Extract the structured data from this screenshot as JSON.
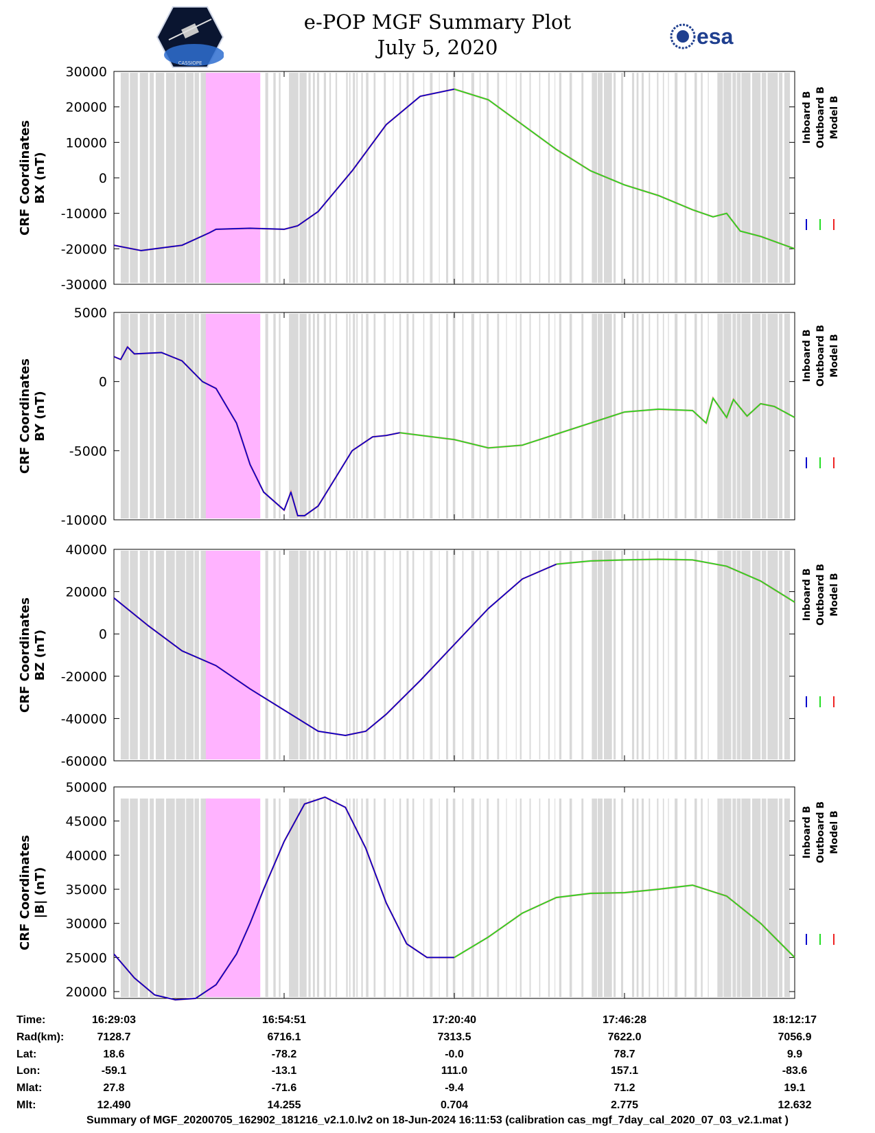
{
  "title": {
    "line1": "e-POP MGF Summary Plot",
    "line2": "July 5, 2020"
  },
  "logos": {
    "left": "cassiope-mission-logo",
    "left_text": "CASSIOPE",
    "right": "esa"
  },
  "legend": [
    {
      "label": "Inboard B",
      "color": "#0000cc"
    },
    {
      "label": "Outboard B",
      "color": "#22dd22"
    },
    {
      "label": "Model B",
      "color": "#ee2222"
    }
  ],
  "colors": {
    "gap_shading": "#d9d9d9",
    "highlight": "#ffb3ff"
  },
  "chart_data": [
    {
      "type": "line",
      "ylabel_line1": "CRF Coordinates",
      "ylabel_line2": "BX (nT)",
      "ylim": [
        -30000,
        30000
      ],
      "yticks": [
        30000,
        20000,
        10000,
        0,
        -10000,
        -20000,
        -30000
      ],
      "yticklabels": [
        "30000",
        "20000",
        "10000",
        "0",
        "-10000",
        "-20000",
        "-30000"
      ],
      "series": [
        {
          "name": "Inboard B",
          "x": [
            0,
            0.04,
            0.1,
            0.14,
            0.15,
            0.2,
            0.25,
            0.27,
            0.3,
            0.35,
            0.4,
            0.45,
            0.5
          ],
          "y": [
            -19000,
            -20500,
            -19000,
            -15500,
            -14500,
            -14200,
            -14500,
            -13500,
            -9500,
            2000,
            15000,
            23000,
            25000
          ]
        },
        {
          "name": "Outboard B",
          "x": [
            0.5,
            0.55,
            0.6,
            0.65,
            0.7,
            0.75,
            0.8,
            0.85,
            0.88,
            0.9,
            0.92,
            0.95,
            1.0
          ],
          "y": [
            25000,
            22000,
            15000,
            8000,
            2000,
            -2000,
            -5000,
            -9000,
            -11000,
            -10000,
            -15000,
            -16500,
            -20000
          ]
        }
      ]
    },
    {
      "type": "line",
      "ylabel_line1": "CRF Coordinates",
      "ylabel_line2": "BY (nT)",
      "ylim": [
        -10000,
        5000
      ],
      "yticks": [
        5000,
        0,
        -5000,
        -10000
      ],
      "yticklabels": [
        "5000",
        "0",
        "-5000",
        "-10000"
      ],
      "series": [
        {
          "name": "Inboard B",
          "x": [
            0,
            0.01,
            0.02,
            0.03,
            0.07,
            0.1,
            0.13,
            0.15,
            0.18,
            0.2,
            0.22,
            0.25,
            0.26,
            0.27,
            0.28,
            0.3,
            0.35,
            0.38,
            0.4,
            0.42
          ],
          "y": [
            1800,
            1600,
            2500,
            2000,
            2100,
            1500,
            0,
            -500,
            -3000,
            -6000,
            -8000,
            -9300,
            -8000,
            -9700,
            -9700,
            -9000,
            -5000,
            -4000,
            -3900,
            -3700
          ]
        },
        {
          "name": "Outboard B",
          "x": [
            0.42,
            0.5,
            0.55,
            0.6,
            0.65,
            0.7,
            0.75,
            0.8,
            0.85,
            0.87,
            0.88,
            0.9,
            0.91,
            0.93,
            0.95,
            0.97,
            1.0
          ],
          "y": [
            -3700,
            -4200,
            -4800,
            -4600,
            -3800,
            -3000,
            -2200,
            -2000,
            -2100,
            -3000,
            -1200,
            -2600,
            -1300,
            -2500,
            -1600,
            -1800,
            -2600
          ]
        }
      ]
    },
    {
      "type": "line",
      "ylabel_line1": "CRF Coordinates",
      "ylabel_line2": "BZ (nT)",
      "ylim": [
        -60000,
        40000
      ],
      "yticks": [
        40000,
        20000,
        0,
        -20000,
        -40000,
        -60000
      ],
      "yticklabels": [
        "40000",
        "20000",
        "0",
        "-20000",
        "-40000",
        "-60000"
      ],
      "series": [
        {
          "name": "Inboard B",
          "x": [
            0,
            0.05,
            0.1,
            0.15,
            0.2,
            0.27,
            0.3,
            0.34,
            0.37,
            0.4,
            0.45,
            0.5,
            0.55,
            0.6,
            0.65
          ],
          "y": [
            17000,
            4000,
            -8000,
            -15000,
            -26000,
            -40000,
            -46000,
            -48000,
            -46000,
            -38000,
            -22000,
            -5000,
            12000,
            26000,
            33000
          ]
        },
        {
          "name": "Outboard B",
          "x": [
            0.65,
            0.7,
            0.75,
            0.8,
            0.85,
            0.9,
            0.95,
            1.0
          ],
          "y": [
            33000,
            34500,
            35000,
            35300,
            35000,
            32000,
            25000,
            15000
          ]
        }
      ]
    },
    {
      "type": "line",
      "ylabel_line1": "CRF Coordinates",
      "ylabel_line2": "|B| (nT)",
      "ylim": [
        19000,
        50000
      ],
      "yticks": [
        50000,
        45000,
        40000,
        35000,
        30000,
        25000,
        20000
      ],
      "yticklabels": [
        "50000",
        "45000",
        "40000",
        "35000",
        "30000",
        "25000",
        "20000"
      ],
      "series": [
        {
          "name": "Inboard B",
          "x": [
            0,
            0.03,
            0.06,
            0.09,
            0.12,
            0.15,
            0.18,
            0.2,
            0.22,
            0.25,
            0.28,
            0.31,
            0.34,
            0.37,
            0.4,
            0.43,
            0.46,
            0.5
          ],
          "y": [
            25500,
            22000,
            19500,
            18800,
            19000,
            21000,
            25500,
            30000,
            35000,
            42000,
            47500,
            48500,
            47000,
            41000,
            33000,
            27000,
            25000,
            25000
          ]
        },
        {
          "name": "Outboard B",
          "x": [
            0.5,
            0.55,
            0.6,
            0.65,
            0.7,
            0.75,
            0.8,
            0.85,
            0.9,
            0.95,
            1.0
          ],
          "y": [
            25000,
            28000,
            31500,
            33800,
            34400,
            34500,
            35000,
            35600,
            34000,
            30000,
            25000
          ]
        }
      ]
    }
  ],
  "time_axis": {
    "labels": [
      {
        "name": "Time:",
        "values": [
          "16:29:03",
          "16:54:51",
          "17:20:40",
          "17:46:28",
          "18:12:17"
        ]
      },
      {
        "name": "Rad(km):",
        "values": [
          "7128.7",
          "6716.1",
          "7313.5",
          "7622.0",
          "7056.9"
        ]
      },
      {
        "name": "Lat:",
        "values": [
          "18.6",
          "-78.2",
          "-0.0",
          "78.7",
          "9.9"
        ]
      },
      {
        "name": "Lon:",
        "values": [
          "-59.1",
          "-13.1",
          "111.0",
          "157.1",
          "-83.6"
        ]
      },
      {
        "name": "Mlat:",
        "values": [
          "27.8",
          "-71.6",
          "-9.4",
          "71.2",
          "19.1"
        ]
      },
      {
        "name": "Mlt:",
        "values": [
          "12.490",
          "14.255",
          "0.704",
          "2.775",
          "12.632"
        ]
      }
    ]
  },
  "footer": "Summary of MGF_20200705_162902_181216_v2.1.0.lv2 on 18-Jun-2024 16:11:53 (calibration cas_mgf_7day_cal_2020_07_03_v2.1.mat )"
}
